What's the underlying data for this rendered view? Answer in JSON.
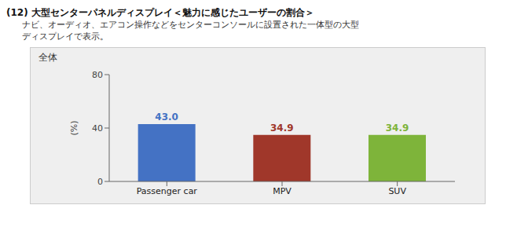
{
  "chart_data": {
    "type": "bar",
    "title": "(12) 大型センターパネルディスプレイ＜魅力に感じたユーザーの割合＞",
    "subtitle": "ナビ、オーディオ、エアコン操作などをセンターコンソールに設置された一体型の大型\nディスプレイで表示。",
    "annotations": [
      "全体"
    ],
    "categories": [
      "Passenger car",
      "MPV",
      "SUV"
    ],
    "values": [
      43.0,
      34.9,
      34.9
    ],
    "value_labels": [
      "43.0",
      "34.9",
      "34.9"
    ],
    "data_labels": true,
    "colors": [
      "#4472C4",
      "#A0372A",
      "#7EB43A"
    ],
    "ylabel": "(%)",
    "ylim": [
      0,
      80
    ],
    "yticks": [
      0,
      40,
      80
    ]
  }
}
